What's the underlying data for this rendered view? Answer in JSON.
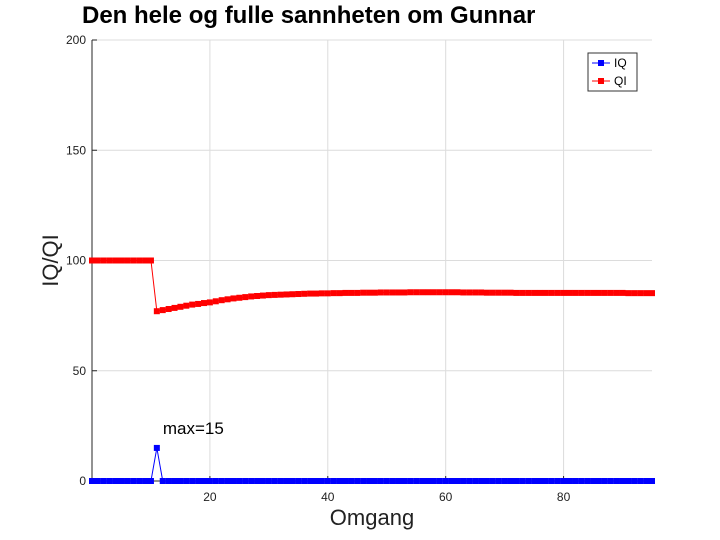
{
  "chart_data": {
    "type": "line",
    "title": "Den hele og fulle sannheten om Gunnar",
    "xlabel": "Omgang",
    "ylabel": "IQ/QI",
    "xlim": [
      0,
      95
    ],
    "ylim": [
      0,
      200
    ],
    "xticks": [
      20,
      40,
      60,
      80
    ],
    "yticks": [
      0,
      50,
      100,
      150,
      200
    ],
    "grid": true,
    "legend_position": "top-right",
    "x": [
      0,
      1,
      2,
      3,
      4,
      5,
      6,
      7,
      8,
      9,
      10,
      11,
      12,
      13,
      14,
      15,
      16,
      17,
      18,
      19,
      20,
      21,
      22,
      23,
      24,
      25,
      26,
      27,
      28,
      29,
      30,
      31,
      32,
      33,
      34,
      35,
      36,
      37,
      38,
      39,
      40,
      41,
      42,
      43,
      44,
      45,
      46,
      47,
      48,
      49,
      50,
      51,
      52,
      53,
      54,
      55,
      56,
      57,
      58,
      59,
      60,
      61,
      62,
      63,
      64,
      65,
      66,
      67,
      68,
      69,
      70,
      71,
      72,
      73,
      74,
      75,
      76,
      77,
      78,
      79,
      80,
      81,
      82,
      83,
      84,
      85,
      86,
      87,
      88,
      89,
      90,
      91,
      92,
      93,
      94,
      95
    ],
    "series": [
      {
        "name": "IQ",
        "color": "#0000ff",
        "values": [
          0,
          0,
          0,
          0,
          0,
          0,
          0,
          0,
          0,
          0,
          0,
          15,
          0,
          0,
          0,
          0,
          0,
          0,
          0,
          0,
          0,
          0,
          0,
          0,
          0,
          0,
          0,
          0,
          0,
          0,
          0,
          0,
          0,
          0,
          0,
          0,
          0,
          0,
          0,
          0,
          0,
          0,
          0,
          0,
          0,
          0,
          0,
          0,
          0,
          0,
          0,
          0,
          0,
          0,
          0,
          0,
          0,
          0,
          0,
          0,
          0,
          0,
          0,
          0,
          0,
          0,
          0,
          0,
          0,
          0,
          0,
          0,
          0,
          0,
          0,
          0,
          0,
          0,
          0,
          0,
          0,
          0,
          0,
          0,
          0,
          0,
          0,
          0,
          0,
          0,
          0,
          0,
          0,
          0,
          0,
          0
        ]
      },
      {
        "name": "QI",
        "color": "#ff0000",
        "values": [
          100,
          100,
          100,
          100,
          100,
          100,
          100,
          100,
          100,
          100,
          100,
          77,
          77.5,
          78,
          78.5,
          79,
          79.5,
          80,
          80.3,
          80.7,
          81,
          81.5,
          82,
          82.4,
          82.8,
          83.1,
          83.4,
          83.7,
          83.9,
          84.1,
          84.3,
          84.4,
          84.5,
          84.6,
          84.7,
          84.8,
          84.9,
          85,
          85,
          85.1,
          85.1,
          85.2,
          85.2,
          85.3,
          85.3,
          85.3,
          85.4,
          85.4,
          85.4,
          85.5,
          85.5,
          85.5,
          85.5,
          85.5,
          85.6,
          85.6,
          85.6,
          85.6,
          85.6,
          85.6,
          85.6,
          85.6,
          85.6,
          85.5,
          85.5,
          85.5,
          85.5,
          85.4,
          85.4,
          85.4,
          85.4,
          85.4,
          85.3,
          85.3,
          85.3,
          85.3,
          85.3,
          85.3,
          85.3,
          85.3,
          85.3,
          85.3,
          85.3,
          85.3,
          85.3,
          85.3,
          85.3,
          85.3,
          85.3,
          85.3,
          85.3,
          85.2,
          85.2,
          85.2,
          85.2,
          85.2
        ]
      }
    ],
    "annotations": [
      {
        "text": "max=15",
        "x": 11,
        "y": 15
      }
    ]
  }
}
